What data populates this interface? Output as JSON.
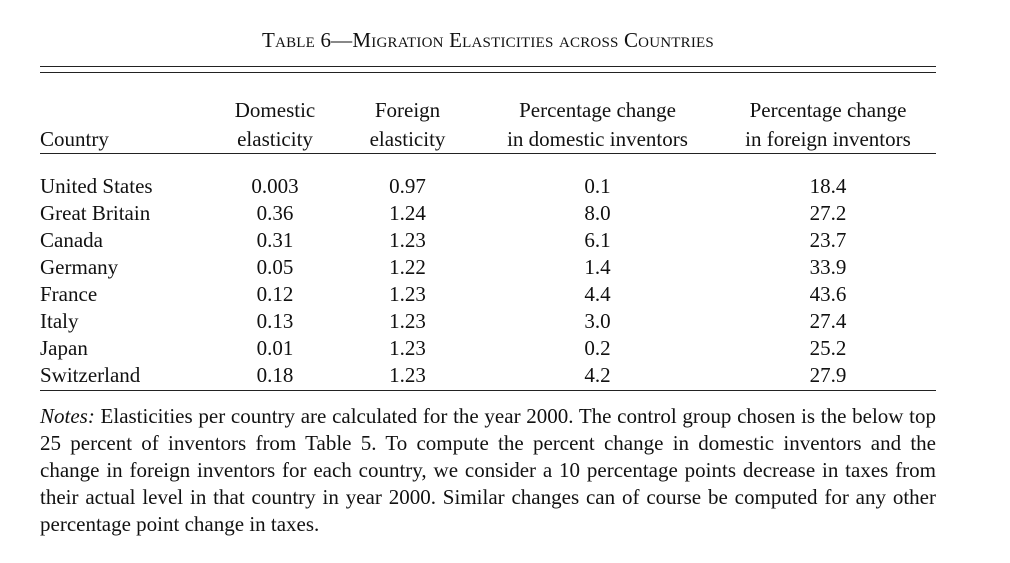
{
  "table": {
    "title": "Table 6—Migration Elasticities across Countries",
    "headers": [
      {
        "line1": "",
        "line2": "Country"
      },
      {
        "line1": "Domestic",
        "line2": "elasticity"
      },
      {
        "line1": "Foreign",
        "line2": "elasticity"
      },
      {
        "line1": "Percentage change",
        "line2": "in domestic inventors"
      },
      {
        "line1": "Percentage change",
        "line2": "in foreign inventors"
      }
    ],
    "rows": [
      [
        "United States",
        "0.003",
        "0.97",
        "0.1",
        "18.4"
      ],
      [
        "Great Britain",
        "0.36",
        "1.24",
        "8.0",
        "27.2"
      ],
      [
        "Canada",
        "0.31",
        "1.23",
        "6.1",
        "23.7"
      ],
      [
        "Germany",
        "0.05",
        "1.22",
        "1.4",
        "33.9"
      ],
      [
        "France",
        "0.12",
        "1.23",
        "4.4",
        "43.6"
      ],
      [
        "Italy",
        "0.13",
        "1.23",
        "3.0",
        "27.4"
      ],
      [
        "Japan",
        "0.01",
        "1.23",
        "0.2",
        "25.2"
      ],
      [
        "Switzerland",
        "0.18",
        "1.23",
        "4.2",
        "27.9"
      ]
    ],
    "notes_label": "Notes:",
    "notes_text": "Elasticities per country are calculated for the year 2000. The control group chosen is the below top 25 percent of inventors from Table 5. To compute the percent change in domestic inventors and the change in foreign inventors for each country, we consider a 10 percentage points decrease in taxes from their actual level in that country in year 2000. Similar changes can of course be computed for any other percentage point change in taxes."
  }
}
